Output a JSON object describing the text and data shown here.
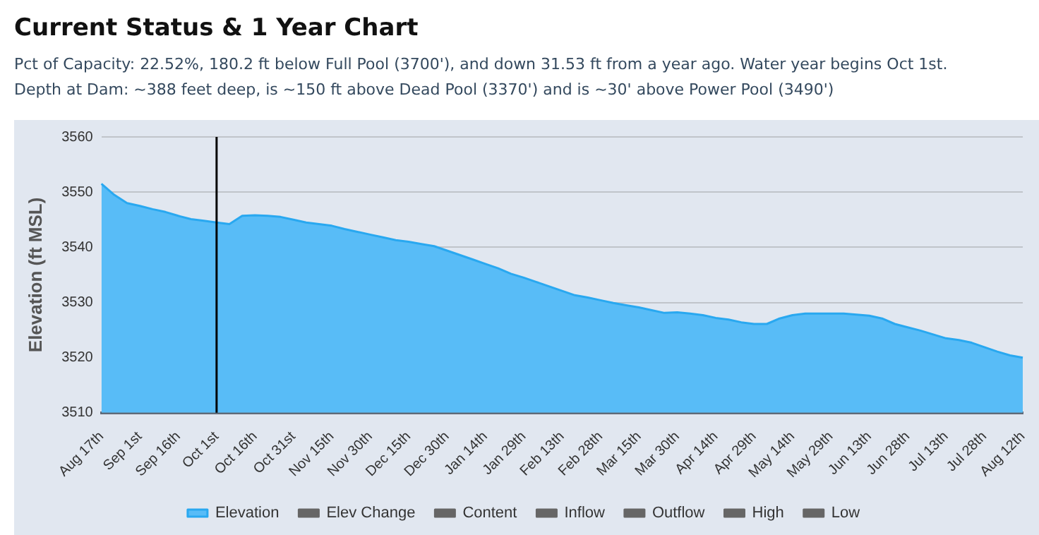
{
  "chart_data": {
    "type": "area",
    "title": "Current Status & 1 Year Chart",
    "subtitle": "Pct of Capacity: 22.52%, 180.2 ft below Full Pool (3700'), and down 31.53 ft from a year ago.    Water year begins Oct 1st.\nDepth at Dam: ~388 feet deep, is ~150 ft above Dead Pool (3370') and is ~30' above Power Pool (3490')",
    "ylabel": "Elevation (ft MSL)",
    "categories": [
      "Aug 17th",
      null,
      null,
      "Sep 1st",
      null,
      null,
      "Sep 16th",
      null,
      null,
      "Oct 1st",
      null,
      null,
      "Oct 16th",
      null,
      null,
      "Oct 31st",
      null,
      null,
      "Nov 15th",
      null,
      null,
      "Nov 30th",
      null,
      null,
      "Dec 15th",
      null,
      null,
      "Dec 30th",
      null,
      null,
      "Jan 14th",
      null,
      null,
      "Jan 29th",
      null,
      null,
      "Feb 13th",
      null,
      null,
      "Feb 28th",
      null,
      null,
      "Mar 15th",
      null,
      null,
      "Mar 30th",
      null,
      null,
      "Apr 14th",
      null,
      null,
      "Apr 29th",
      null,
      null,
      "May 14th",
      null,
      null,
      "May 29th",
      null,
      null,
      "Jun 13th",
      null,
      null,
      "Jun 28th",
      null,
      null,
      "Jul 13th",
      null,
      null,
      "Jul 28th",
      null,
      null,
      "Aug 12th"
    ],
    "series": [
      {
        "name": "Elevation",
        "color": "#58bcf7",
        "values": [
          3551.5,
          3549.5,
          3548.0,
          3547.5,
          3546.9,
          3546.4,
          3545.7,
          3545.1,
          3544.8,
          3544.5,
          3544.2,
          3545.7,
          3545.8,
          3545.7,
          3545.5,
          3545.0,
          3544.5,
          3544.2,
          3543.9,
          3543.3,
          3542.8,
          3542.3,
          3541.8,
          3541.3,
          3541.0,
          3540.6,
          3540.2,
          3539.4,
          3538.6,
          3537.8,
          3537.0,
          3536.2,
          3535.2,
          3534.5,
          3533.7,
          3532.9,
          3532.1,
          3531.3,
          3530.9,
          3530.4,
          3529.9,
          3529.5,
          3529.1,
          3528.6,
          3528.1,
          3528.2,
          3528.0,
          3527.7,
          3527.2,
          3526.9,
          3526.4,
          3526.1,
          3526.1,
          3527.1,
          3527.7,
          3528.0,
          3528.0,
          3528.0,
          3528.0,
          3527.8,
          3527.6,
          3527.1,
          3526.1,
          3525.5,
          3524.9,
          3524.2,
          3523.5,
          3523.2,
          3522.7,
          3521.9,
          3521.1,
          3520.4,
          3520.0
        ]
      },
      {
        "name": "Elev Change",
        "color": "#666666",
        "values": [
          null,
          null,
          null,
          null,
          null,
          null,
          null,
          null,
          null,
          null,
          null,
          null,
          null,
          null,
          null,
          null,
          null,
          null,
          null,
          null,
          null,
          null,
          null,
          null,
          null,
          null,
          null,
          null,
          null,
          null,
          null,
          null,
          null,
          null,
          null,
          null,
          null,
          null,
          null,
          null,
          null,
          null,
          null,
          null,
          null,
          null,
          null,
          null,
          null,
          null,
          null,
          null,
          null,
          null,
          null,
          null,
          null,
          null,
          null,
          null,
          null,
          null,
          null,
          null,
          null,
          null,
          null,
          null,
          null,
          null,
          null,
          null,
          null
        ]
      },
      {
        "name": "Content",
        "color": "#666666",
        "values": [
          null,
          null,
          null,
          null,
          null,
          null,
          null,
          null,
          null,
          null,
          null,
          null,
          null,
          null,
          null,
          null,
          null,
          null,
          null,
          null,
          null,
          null,
          null,
          null,
          null,
          null,
          null,
          null,
          null,
          null,
          null,
          null,
          null,
          null,
          null,
          null,
          null,
          null,
          null,
          null,
          null,
          null,
          null,
          null,
          null,
          null,
          null,
          null,
          null,
          null,
          null,
          null,
          null,
          null,
          null,
          null,
          null,
          null,
          null,
          null,
          null,
          null,
          null,
          null,
          null,
          null,
          null,
          null,
          null,
          null,
          null,
          null,
          null
        ]
      },
      {
        "name": "Inflow",
        "color": "#666666",
        "values": [
          null,
          null,
          null,
          null,
          null,
          null,
          null,
          null,
          null,
          null,
          null,
          null,
          null,
          null,
          null,
          null,
          null,
          null,
          null,
          null,
          null,
          null,
          null,
          null,
          null,
          null,
          null,
          null,
          null,
          null,
          null,
          null,
          null,
          null,
          null,
          null,
          null,
          null,
          null,
          null,
          null,
          null,
          null,
          null,
          null,
          null,
          null,
          null,
          null,
          null,
          null,
          null,
          null,
          null,
          null,
          null,
          null,
          null,
          null,
          null,
          null,
          null,
          null,
          null,
          null,
          null,
          null,
          null,
          null,
          null,
          null,
          null,
          null
        ]
      },
      {
        "name": "Outflow",
        "color": "#666666",
        "values": [
          null,
          null,
          null,
          null,
          null,
          null,
          null,
          null,
          null,
          null,
          null,
          null,
          null,
          null,
          null,
          null,
          null,
          null,
          null,
          null,
          null,
          null,
          null,
          null,
          null,
          null,
          null,
          null,
          null,
          null,
          null,
          null,
          null,
          null,
          null,
          null,
          null,
          null,
          null,
          null,
          null,
          null,
          null,
          null,
          null,
          null,
          null,
          null,
          null,
          null,
          null,
          null,
          null,
          null,
          null,
          null,
          null,
          null,
          null,
          null,
          null,
          null,
          null,
          null,
          null,
          null,
          null,
          null,
          null,
          null,
          null,
          null,
          null
        ]
      },
      {
        "name": "High",
        "color": "#666666",
        "values": [
          null,
          null,
          null,
          null,
          null,
          null,
          null,
          null,
          null,
          null,
          null,
          null,
          null,
          null,
          null,
          null,
          null,
          null,
          null,
          null,
          null,
          null,
          null,
          null,
          null,
          null,
          null,
          null,
          null,
          null,
          null,
          null,
          null,
          null,
          null,
          null,
          null,
          null,
          null,
          null,
          null,
          null,
          null,
          null,
          null,
          null,
          null,
          null,
          null,
          null,
          null,
          null,
          null,
          null,
          null,
          null,
          null,
          null,
          null,
          null,
          null,
          null,
          null,
          null,
          null,
          null,
          null,
          null,
          null,
          null,
          null,
          null,
          null
        ]
      },
      {
        "name": "Low",
        "color": "#666666",
        "values": [
          null,
          null,
          null,
          null,
          null,
          null,
          null,
          null,
          null,
          null,
          null,
          null,
          null,
          null,
          null,
          null,
          null,
          null,
          null,
          null,
          null,
          null,
          null,
          null,
          null,
          null,
          null,
          null,
          null,
          null,
          null,
          null,
          null,
          null,
          null,
          null,
          null,
          null,
          null,
          null,
          null,
          null,
          null,
          null,
          null,
          null,
          null,
          null,
          null,
          null,
          null,
          null,
          null,
          null,
          null,
          null,
          null,
          null,
          null,
          null,
          null,
          null,
          null,
          null,
          null,
          null,
          null,
          null,
          null,
          null,
          null,
          null,
          null
        ]
      }
    ],
    "ylim": [
      3510,
      3560
    ],
    "yticks": [
      3510,
      3520,
      3530,
      3540,
      3550,
      3560
    ],
    "ref_lines": [
      {
        "axis": "x",
        "value": "Oct 1st",
        "color": "#000000"
      }
    ],
    "grid": "y",
    "legend": "bottom",
    "marker": "none"
  }
}
